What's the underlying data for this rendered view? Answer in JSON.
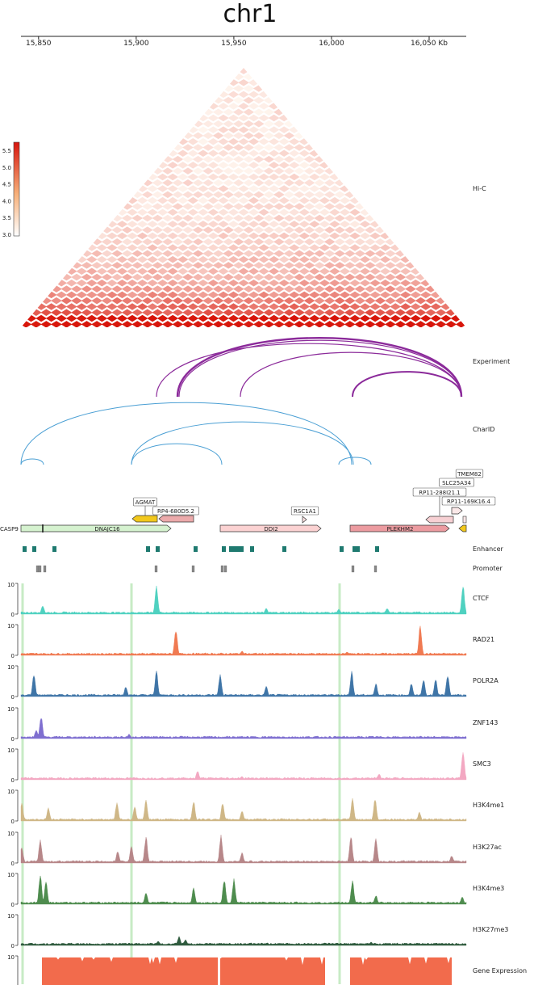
{
  "title": "chr1",
  "axis": {
    "ticks": [
      "15,850",
      "15,900",
      "15,950",
      "16,000",
      "16,050 Kb"
    ]
  },
  "colorbar": {
    "ticks": [
      "5.5",
      "5.0",
      "4.5",
      "4.0",
      "3.5",
      "3.0"
    ],
    "low_color": "#ffffff",
    "high_color": "#d7150d"
  },
  "tracks": {
    "hic": "Hi-C",
    "experiment": "Experiment",
    "charid": "CharID",
    "enhancer": "Enhancer",
    "promoter": "Promoter",
    "gene_expression": "Gene Expression"
  },
  "genes": [
    {
      "label": "CASP9",
      "color": "#d5f2cf"
    },
    {
      "label": "DNAJC16",
      "color": "#d5f2cf"
    },
    {
      "label": "AGMAT",
      "color": "#f2c81c"
    },
    {
      "label": "RP4-680D5.2",
      "color": "#ecaaab"
    },
    {
      "label": "RSC1A1",
      "color": "#fbe0e0"
    },
    {
      "label": "DDI2",
      "color": "#fbd2d2"
    },
    {
      "label": "PLEKHM2",
      "color": "#ec9ba0"
    },
    {
      "label": "RP11-288I21.1",
      "color": "#f7d0d3"
    },
    {
      "label": "SLC25A34",
      "color": "#fbe8e8"
    },
    {
      "label": "TMEM82",
      "color": "#fbe8e8"
    },
    {
      "label": "RP11-169K16.4",
      "color": "#fbe8e8"
    }
  ],
  "signal_tracks": [
    {
      "name": "CTCF",
      "color": "#4fd1c0",
      "ymax": "10",
      "ymin": "0"
    },
    {
      "name": "RAD21",
      "color": "#f07a52",
      "ymax": "10",
      "ymin": "0"
    },
    {
      "name": "POLR2A",
      "color": "#3f75a7",
      "ymax": "10",
      "ymin": "0"
    },
    {
      "name": "ZNF143",
      "color": "#7f6fd0",
      "ymax": "10",
      "ymin": "0"
    },
    {
      "name": "SMC3",
      "color": "#f3a8c2",
      "ymax": "10",
      "ymin": "0"
    },
    {
      "name": "H3K4me1",
      "color": "#cfb787",
      "ymax": "10",
      "ymin": "0"
    },
    {
      "name": "H3K27ac",
      "color": "#b78789",
      "ymax": "10",
      "ymin": "0"
    },
    {
      "name": "H3K4me3",
      "color": "#4e8c4e",
      "ymax": "10",
      "ymin": "0"
    },
    {
      "name": "H3K27me3",
      "color": "#2e5a3d",
      "ymax": "10",
      "ymin": "0"
    },
    {
      "name": "Gene Expression",
      "color": "#f26b4c",
      "ymax": "10",
      "ymin": "0"
    }
  ],
  "colors": {
    "experiment_arc": "#8b2a9a",
    "charid_arc": "#4a9fd4",
    "enhancer": "#1f7a70",
    "promoter": "#888888",
    "highlight": "#b9e6b6"
  }
}
